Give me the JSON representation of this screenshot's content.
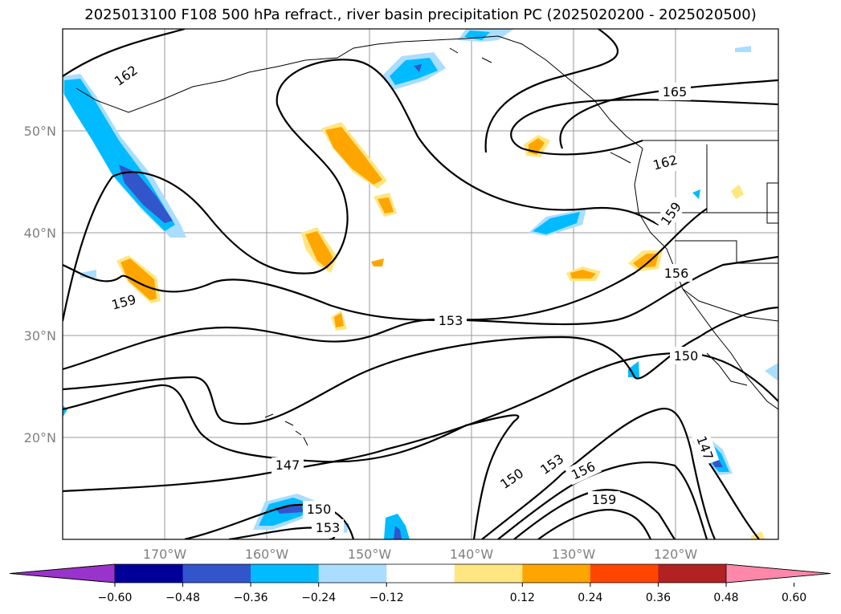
{
  "title": "2025013100 F108 500 hPa refract., river basin precipitation PC (2025020200 - 2025020500)",
  "map": {
    "lat_labels": [
      "50°N",
      "40°N",
      "30°N",
      "20°N"
    ],
    "lon_labels": [
      "170°W",
      "160°W",
      "150°W",
      "140°W",
      "130°W",
      "120°W"
    ],
    "contour_labels": [
      "162",
      "165",
      "162",
      "159",
      "159",
      "156",
      "153",
      "150",
      "147",
      "150",
      "153",
      "150",
      "153",
      "156",
      "159",
      "147"
    ]
  },
  "colorbar": {
    "ticks": [
      "−0.60",
      "−0.48",
      "−0.36",
      "−0.24",
      "−0.12",
      "0.12",
      "0.24",
      "0.36",
      "0.48",
      "0.60"
    ],
    "colors": [
      "#9933cc",
      "#000099",
      "#3355cc",
      "#00bbff",
      "#aaddff",
      "#ffffff",
      "#ffe680",
      "#ffa500",
      "#ff4500",
      "#b22222",
      "#ff88aa"
    ]
  }
}
